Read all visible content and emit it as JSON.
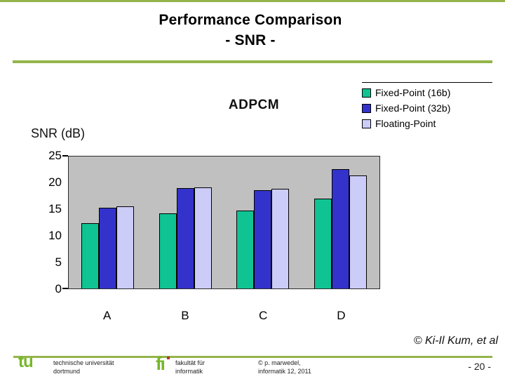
{
  "title": {
    "line1": "Performance Comparison",
    "line2": "- SNR -"
  },
  "colors": {
    "accent_green": "#94B44A",
    "logo_green": "#76B82A",
    "logo_dot_red": "#B03A2A",
    "plot_background": "#C0C0C0"
  },
  "chart_data": {
    "type": "bar",
    "title": "ADPCM",
    "y_axis_title": "SNR (dB)",
    "categories": [
      "A",
      "B",
      "C",
      "D"
    ],
    "series": [
      {
        "name": "Fixed-Point (16b)",
        "color": "#10C392",
        "values": [
          12.4,
          14.2,
          14.7,
          17.0
        ]
      },
      {
        "name": "Fixed-Point (32b)",
        "color": "#3333CC",
        "values": [
          15.3,
          19.0,
          18.6,
          22.6
        ]
      },
      {
        "name": "Floating-Point",
        "color": "#CCCCF8",
        "values": [
          15.5,
          19.2,
          18.9,
          21.4
        ]
      }
    ],
    "ylim": [
      0,
      25
    ],
    "yticks": [
      "25",
      "20",
      "15",
      "10",
      "5",
      "0"
    ],
    "grid": false,
    "legend_position": "top-right",
    "plot_background": "#C0C0C0"
  },
  "attribution": "© Ki-Il Kum, et al",
  "footer": {
    "tu_logo_text": "tu",
    "university_line1": "technische universität",
    "university_line2": "dortmund",
    "fi_logo_text": "fı",
    "faculty_line1": "fakultät für",
    "faculty_line2": "informatik",
    "copyright_line1": "© p. marwedel,",
    "copyright_line2": "informatik 12,  2011",
    "page_number": "- 20 -"
  }
}
